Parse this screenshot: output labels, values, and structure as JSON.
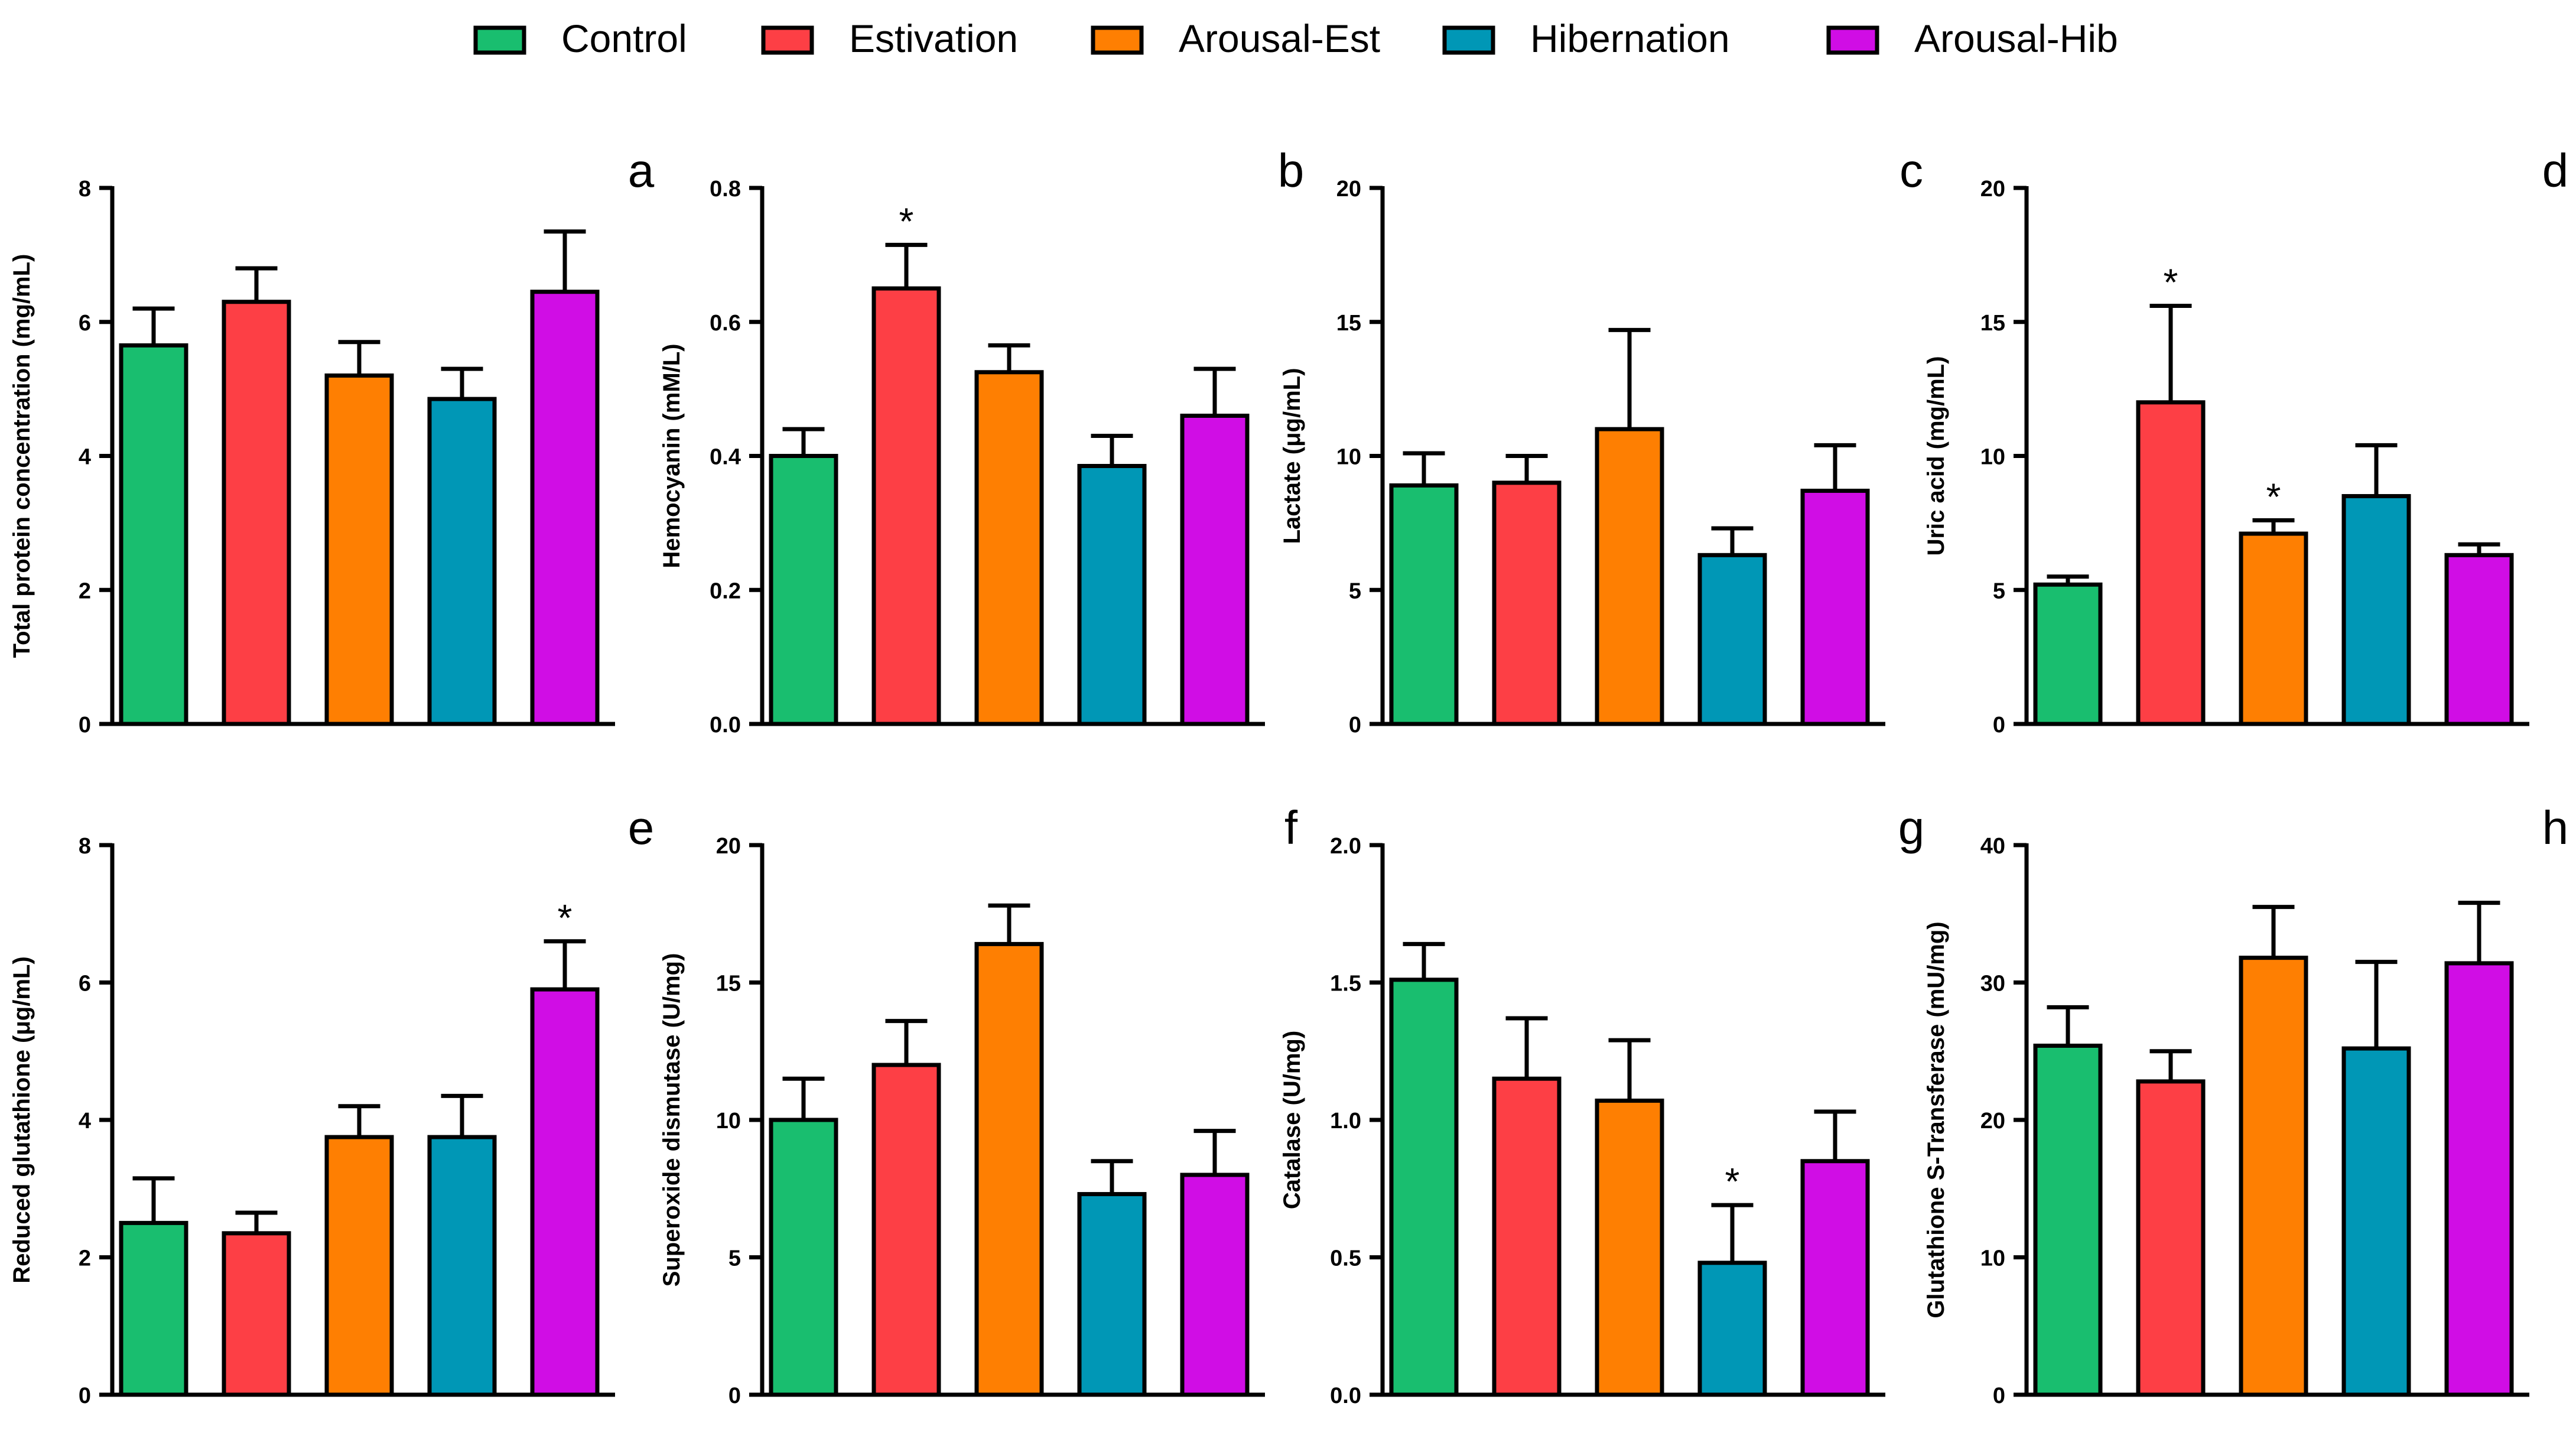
{
  "legend": {
    "items": [
      {
        "label": "Control",
        "color": "#19be6f"
      },
      {
        "label": "Estivation",
        "color": "#fd3f45"
      },
      {
        "label": "Arousal-Est",
        "color": "#fe7f02"
      },
      {
        "label": "Hibernation",
        "color": "#0097b6"
      },
      {
        "label": "Arousal-Hib",
        "color": "#d00de5"
      }
    ]
  },
  "chart_data": [
    {
      "panel": "a",
      "type": "bar",
      "ylabel": "Total protein concentration (mg/mL)",
      "ylim": [
        0,
        8
      ],
      "yticks": [
        0,
        2,
        4,
        6,
        8
      ],
      "tick_labels": [
        "0",
        "2",
        "4",
        "6",
        "8"
      ],
      "categories": [
        "Control",
        "Estivation",
        "Arousal-Est",
        "Hibernation",
        "Arousal-Hib"
      ],
      "values": [
        5.65,
        6.3,
        5.2,
        4.85,
        6.45
      ],
      "errors": [
        0.55,
        0.5,
        0.5,
        0.45,
        0.9
      ],
      "significance": [
        "",
        "",
        "",
        "",
        ""
      ]
    },
    {
      "panel": "b",
      "type": "bar",
      "ylabel": "Hemocyanin (mM/L)",
      "ylim": [
        0,
        0.8
      ],
      "yticks": [
        0,
        0.2,
        0.4,
        0.6,
        0.8
      ],
      "tick_labels": [
        "0.0",
        "0.2",
        "0.4",
        "0.6",
        "0.8"
      ],
      "categories": [
        "Control",
        "Estivation",
        "Arousal-Est",
        "Hibernation",
        "Arousal-Hib"
      ],
      "values": [
        0.4,
        0.65,
        0.525,
        0.385,
        0.46
      ],
      "errors": [
        0.04,
        0.065,
        0.04,
        0.045,
        0.07
      ],
      "significance": [
        "",
        "*",
        "",
        "",
        ""
      ]
    },
    {
      "panel": "c",
      "type": "bar",
      "ylabel": "Lactate (μg/mL)",
      "ylim": [
        0,
        20
      ],
      "yticks": [
        0,
        5,
        10,
        15,
        20
      ],
      "tick_labels": [
        "0",
        "5",
        "10",
        "15",
        "20"
      ],
      "categories": [
        "Control",
        "Estivation",
        "Arousal-Est",
        "Hibernation",
        "Arousal-Hib"
      ],
      "values": [
        8.9,
        9.0,
        11.0,
        6.3,
        8.7
      ],
      "errors": [
        1.2,
        1.0,
        3.7,
        1.0,
        1.7
      ],
      "significance": [
        "",
        "",
        "",
        "",
        ""
      ]
    },
    {
      "panel": "d",
      "type": "bar",
      "ylabel": "Uric acid (mg/mL)",
      "ylim": [
        0,
        20
      ],
      "yticks": [
        0,
        5,
        10,
        15,
        20
      ],
      "tick_labels": [
        "0",
        "5",
        "10",
        "15",
        "20"
      ],
      "categories": [
        "Control",
        "Estivation",
        "Arousal-Est",
        "Hibernation",
        "Arousal-Hib"
      ],
      "values": [
        5.2,
        12.0,
        7.1,
        8.5,
        6.3
      ],
      "errors": [
        0.3,
        3.6,
        0.5,
        1.9,
        0.4
      ],
      "significance": [
        "",
        "*",
        "*",
        "",
        ""
      ]
    },
    {
      "panel": "e",
      "type": "bar",
      "ylabel": "Reduced glutathione (μg/mL)",
      "ylim": [
        0,
        8
      ],
      "yticks": [
        0,
        2,
        4,
        6,
        8
      ],
      "tick_labels": [
        "0",
        "2",
        "4",
        "6",
        "8"
      ],
      "categories": [
        "Control",
        "Estivation",
        "Arousal-Est",
        "Hibernation",
        "Arousal-Hib"
      ],
      "values": [
        2.5,
        2.35,
        3.75,
        3.75,
        5.9
      ],
      "errors": [
        0.65,
        0.3,
        0.45,
        0.6,
        0.7
      ],
      "significance": [
        "",
        "",
        "",
        "",
        "*"
      ]
    },
    {
      "panel": "f",
      "type": "bar",
      "ylabel": "Superoxide dismutase (U/mg)",
      "ylim": [
        0,
        20
      ],
      "yticks": [
        0,
        5,
        10,
        15,
        20
      ],
      "tick_labels": [
        "0",
        "5",
        "10",
        "15",
        "20"
      ],
      "categories": [
        "Control",
        "Estivation",
        "Arousal-Est",
        "Hibernation",
        "Arousal-Hib"
      ],
      "values": [
        10.0,
        12.0,
        16.4,
        7.3,
        8.0
      ],
      "errors": [
        1.5,
        1.6,
        1.4,
        1.2,
        1.6
      ],
      "significance": [
        "",
        "",
        "",
        "",
        ""
      ]
    },
    {
      "panel": "g",
      "type": "bar",
      "ylabel": "Catalase (U/mg)",
      "ylim": [
        0,
        2
      ],
      "yticks": [
        0,
        0.5,
        1.0,
        1.5,
        2.0
      ],
      "tick_labels": [
        "0.0",
        "0.5",
        "1.0",
        "1.5",
        "2.0"
      ],
      "categories": [
        "Control",
        "Estivation",
        "Arousal-Est",
        "Hibernation",
        "Arousal-Hib"
      ],
      "values": [
        1.51,
        1.15,
        1.07,
        0.48,
        0.85
      ],
      "errors": [
        0.13,
        0.22,
        0.22,
        0.21,
        0.18
      ],
      "significance": [
        "",
        "",
        "",
        "*",
        ""
      ]
    },
    {
      "panel": "h",
      "type": "bar",
      "ylabel": "Glutathione S-Transferase (mU/mg)",
      "ylim": [
        0,
        40
      ],
      "yticks": [
        0,
        10,
        20,
        30,
        40
      ],
      "tick_labels": [
        "0",
        "10",
        "20",
        "30",
        "40"
      ],
      "categories": [
        "Control",
        "Estivation",
        "Arousal-Est",
        "Hibernation",
        "Arousal-Hib"
      ],
      "values": [
        25.4,
        22.8,
        31.8,
        25.2,
        31.4
      ],
      "errors": [
        2.8,
        2.2,
        3.7,
        6.3,
        4.4
      ],
      "significance": [
        "",
        "",
        "",
        "",
        ""
      ]
    }
  ]
}
